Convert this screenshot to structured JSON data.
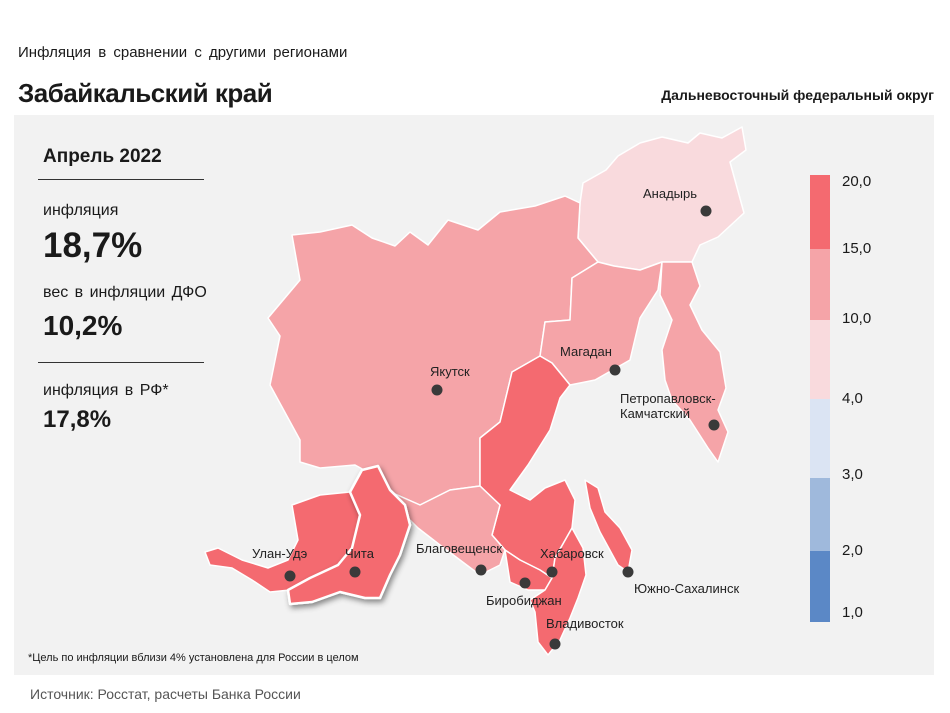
{
  "header": {
    "subtitle": "Инфляция в сравнении с другими регионами",
    "title": "Забайкальский край",
    "district": "Дальневосточный федеральный округ"
  },
  "stats": {
    "period": "Апрель 2022",
    "inflation_label": "инфляция",
    "inflation_value": "18,7%",
    "weight_label": "вес в инфляции ДФО",
    "weight_value": "10,2%",
    "rf_label": "инфляция в РФ*",
    "rf_value": "17,8%"
  },
  "map": {
    "colors": {
      "bin_15_20": "#f46a70",
      "bin_10_15": "#f5a4a8",
      "bin_4_10": "#f9dadd",
      "bin_3_4": "#dbe4f3",
      "bin_2_3": "#9fb9dc",
      "bin_1_2": "#5b88c6",
      "background": "#f2f2f2",
      "border": "#ffffff",
      "city_dot": "#3a3a3a"
    },
    "cities": {
      "anadyr": "Анадырь",
      "yakutsk": "Якутск",
      "magadan": "Магадан",
      "petropavlovsk_1": "Петропавловск-",
      "petropavlovsk_2": "Камчатский",
      "ulan_ude": "Улан-Удэ",
      "chita": "Чита",
      "blagoveshchensk": "Благовещенск",
      "khabarovsk": "Хабаровск",
      "birobidzhan": "Биробиджан",
      "yuzhno_sakhalinsk": "Южно-Сахалинск",
      "vladivostok": "Владивосток"
    }
  },
  "legend": {
    "ticks": [
      "20,0",
      "15,0",
      "10,0",
      "4,0",
      "3,0",
      "2,0",
      "1,0"
    ]
  },
  "footnote": "*Цель по инфляции вблизи 4% установлена для России в целом",
  "source": "Источник: Росстат, расчеты Банка России"
}
